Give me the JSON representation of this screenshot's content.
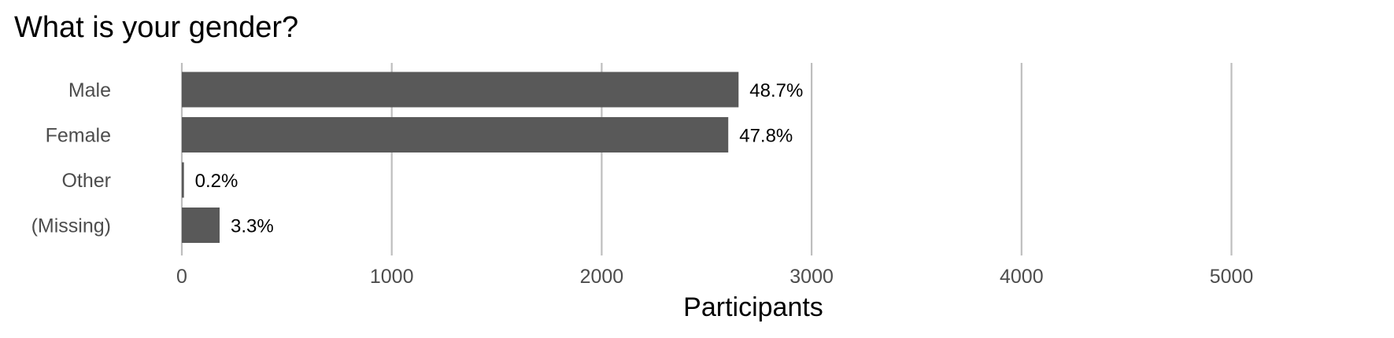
{
  "chart_data": {
    "type": "bar",
    "orientation": "horizontal",
    "title": "What is your gender?",
    "xlabel": "Participants",
    "ylabel": "",
    "categories": [
      "Male",
      "Female",
      "Other",
      "(Missing)"
    ],
    "values": [
      2652,
      2603,
      10,
      180
    ],
    "data_labels": [
      "48.7%",
      "47.8%",
      "0.2%",
      "3.3%"
    ],
    "xlim": [
      0,
      5750
    ],
    "x_ticks": [
      0,
      1000,
      2000,
      3000,
      4000,
      5000
    ],
    "x_tick_labels": [
      "0",
      "1000",
      "2000",
      "3000",
      "4000",
      "5000"
    ],
    "grid": "vertical major gridlines",
    "legend": "none",
    "colors": {
      "bar": "#595959",
      "grid": "#bebebe",
      "category_text": "#4d4d4d",
      "title_text": "#000000"
    }
  }
}
